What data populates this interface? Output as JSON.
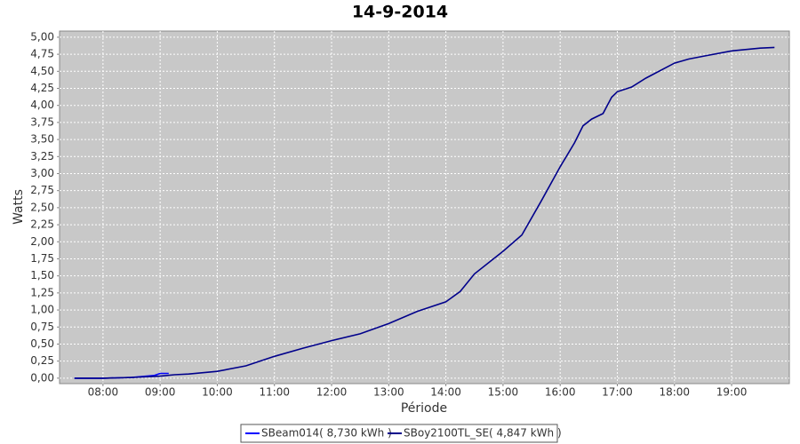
{
  "chart_data": {
    "type": "line",
    "title": "14-9-2014",
    "x_label": "Période",
    "y_label": "Watts",
    "xlim": [
      7.24,
      20.01
    ],
    "xticks": [
      {
        "value": 8,
        "label": "08:00"
      },
      {
        "value": 9,
        "label": "09:00"
      },
      {
        "value": 10,
        "label": "10:00"
      },
      {
        "value": 11,
        "label": "11:00"
      },
      {
        "value": 12,
        "label": "12:00"
      },
      {
        "value": 13,
        "label": "13:00"
      },
      {
        "value": 14,
        "label": "14:00"
      },
      {
        "value": 15,
        "label": "15:00"
      },
      {
        "value": 16,
        "label": "16:00"
      },
      {
        "value": 17,
        "label": "17:00"
      },
      {
        "value": 18,
        "label": "18:00"
      },
      {
        "value": 19,
        "label": "19:00"
      }
    ],
    "ylim": [
      -0.08,
      5.09
    ],
    "yticks": [
      {
        "value": 0,
        "label": "0,00"
      },
      {
        "value": 0.25,
        "label": "0,25"
      },
      {
        "value": 0.5,
        "label": "0,50"
      },
      {
        "value": 0.75,
        "label": "0,75"
      },
      {
        "value": 1,
        "label": "1,00"
      },
      {
        "value": 1.25,
        "label": "1,25"
      },
      {
        "value": 1.5,
        "label": "1,50"
      },
      {
        "value": 1.75,
        "label": "1,75"
      },
      {
        "value": 2,
        "label": "2,00"
      },
      {
        "value": 2.25,
        "label": "2,25"
      },
      {
        "value": 2.5,
        "label": "2,50"
      },
      {
        "value": 2.75,
        "label": "2,75"
      },
      {
        "value": 3,
        "label": "3,00"
      },
      {
        "value": 3.25,
        "label": "3,25"
      },
      {
        "value": 3.5,
        "label": "3,50"
      },
      {
        "value": 3.75,
        "label": "3,75"
      },
      {
        "value": 4,
        "label": "4,00"
      },
      {
        "value": 4.25,
        "label": "4,25"
      },
      {
        "value": 4.5,
        "label": "4,50"
      },
      {
        "value": 4.75,
        "label": "4,75"
      },
      {
        "value": 5,
        "label": "5,00"
      }
    ],
    "grid": true,
    "series": [
      {
        "name": "SBeam014( 8,730 kWh )",
        "color": "#0000ff",
        "x": [
          7.5,
          8.0,
          8.5,
          8.9,
          9.0,
          9.15
        ],
        "values": [
          0,
          0,
          0.01,
          0.04,
          0.07,
          0.07
        ]
      },
      {
        "name": "SBoy2100TL_SE( 4,847 kWh )",
        "color": "#00008b",
        "x": [
          7.5,
          8.0,
          8.5,
          9.0,
          9.25,
          9.5,
          10.0,
          10.5,
          11.0,
          11.5,
          12.0,
          12.5,
          13.0,
          13.5,
          14.0,
          14.25,
          14.5,
          15.0,
          15.33,
          15.67,
          16.0,
          16.25,
          16.4,
          16.55,
          16.75,
          16.9,
          17.0,
          17.25,
          17.5,
          18.0,
          18.25,
          18.5,
          19.0,
          19.5,
          19.75
        ],
        "values": [
          0,
          0,
          0.01,
          0.03,
          0.05,
          0.06,
          0.1,
          0.18,
          0.32,
          0.44,
          0.55,
          0.65,
          0.8,
          0.98,
          1.12,
          1.27,
          1.53,
          1.86,
          2.1,
          2.6,
          3.1,
          3.45,
          3.7,
          3.8,
          3.88,
          4.12,
          4.2,
          4.27,
          4.4,
          4.62,
          4.68,
          4.72,
          4.8,
          4.84,
          4.85
        ]
      }
    ]
  }
}
